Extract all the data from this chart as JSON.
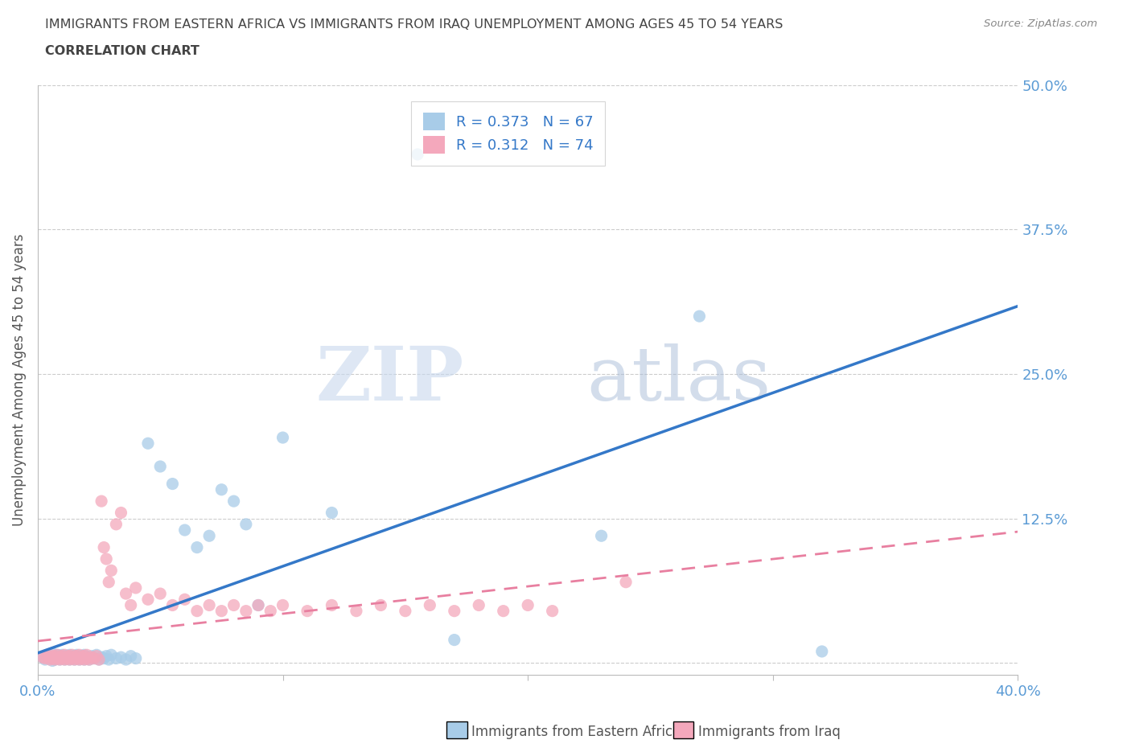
{
  "title_line1": "IMMIGRANTS FROM EASTERN AFRICA VS IMMIGRANTS FROM IRAQ UNEMPLOYMENT AMONG AGES 45 TO 54 YEARS",
  "title_line2": "CORRELATION CHART",
  "source": "Source: ZipAtlas.com",
  "ylabel": "Unemployment Among Ages 45 to 54 years",
  "xlim": [
    0.0,
    0.4
  ],
  "ylim": [
    -0.01,
    0.5
  ],
  "ytick_positions": [
    0.0,
    0.125,
    0.25,
    0.375,
    0.5
  ],
  "ytick_labels": [
    "",
    "12.5%",
    "25.0%",
    "37.5%",
    "50.0%"
  ],
  "xtick_positions": [
    0.0,
    0.1,
    0.2,
    0.3,
    0.4
  ],
  "xtick_labels": [
    "0.0%",
    "",
    "",
    "",
    "40.0%"
  ],
  "series1_label": "Immigrants from Eastern Africa",
  "series2_label": "Immigrants from Iraq",
  "R1": 0.373,
  "N1": 67,
  "R2": 0.312,
  "N2": 74,
  "color1": "#a8cce8",
  "color2": "#f4a8bc",
  "line1_color": "#3478c8",
  "line2_color": "#e87fa0",
  "watermark_zip": "ZIP",
  "watermark_atlas": "atlas",
  "background_color": "#ffffff",
  "grid_color": "#cccccc",
  "title_color": "#444444",
  "axis_label_color": "#555555",
  "tick_color": "#5b9bd5",
  "legend_text_color": "#3478c8",
  "blue_x": [
    0.002,
    0.003,
    0.004,
    0.005,
    0.005,
    0.006,
    0.006,
    0.007,
    0.007,
    0.008,
    0.008,
    0.009,
    0.009,
    0.01,
    0.01,
    0.011,
    0.011,
    0.012,
    0.012,
    0.013,
    0.013,
    0.014,
    0.014,
    0.015,
    0.015,
    0.016,
    0.016,
    0.017,
    0.017,
    0.018,
    0.018,
    0.019,
    0.019,
    0.02,
    0.02,
    0.021,
    0.022,
    0.023,
    0.024,
    0.025,
    0.026,
    0.027,
    0.028,
    0.029,
    0.03,
    0.032,
    0.034,
    0.036,
    0.038,
    0.04,
    0.045,
    0.05,
    0.055,
    0.06,
    0.065,
    0.07,
    0.075,
    0.08,
    0.085,
    0.09,
    0.1,
    0.12,
    0.155,
    0.17,
    0.23,
    0.27,
    0.32
  ],
  "blue_y": [
    0.005,
    0.003,
    0.007,
    0.004,
    0.006,
    0.002,
    0.008,
    0.003,
    0.005,
    0.004,
    0.007,
    0.003,
    0.006,
    0.004,
    0.007,
    0.003,
    0.005,
    0.004,
    0.006,
    0.003,
    0.007,
    0.004,
    0.005,
    0.003,
    0.006,
    0.004,
    0.007,
    0.003,
    0.005,
    0.004,
    0.006,
    0.003,
    0.007,
    0.004,
    0.005,
    0.003,
    0.006,
    0.004,
    0.007,
    0.003,
    0.005,
    0.004,
    0.006,
    0.003,
    0.007,
    0.004,
    0.005,
    0.003,
    0.006,
    0.004,
    0.19,
    0.17,
    0.155,
    0.115,
    0.1,
    0.11,
    0.15,
    0.14,
    0.12,
    0.05,
    0.195,
    0.13,
    0.44,
    0.02,
    0.11,
    0.3,
    0.01
  ],
  "pink_x": [
    0.002,
    0.003,
    0.004,
    0.005,
    0.005,
    0.006,
    0.006,
    0.007,
    0.007,
    0.008,
    0.008,
    0.009,
    0.009,
    0.01,
    0.01,
    0.011,
    0.011,
    0.012,
    0.012,
    0.013,
    0.013,
    0.014,
    0.014,
    0.015,
    0.015,
    0.016,
    0.016,
    0.017,
    0.017,
    0.018,
    0.018,
    0.019,
    0.019,
    0.02,
    0.02,
    0.021,
    0.022,
    0.023,
    0.024,
    0.025,
    0.026,
    0.027,
    0.028,
    0.029,
    0.03,
    0.032,
    0.034,
    0.036,
    0.038,
    0.04,
    0.045,
    0.05,
    0.055,
    0.06,
    0.065,
    0.07,
    0.075,
    0.08,
    0.085,
    0.09,
    0.095,
    0.1,
    0.11,
    0.12,
    0.13,
    0.14,
    0.15,
    0.16,
    0.17,
    0.18,
    0.19,
    0.2,
    0.21,
    0.24
  ],
  "pink_y": [
    0.005,
    0.004,
    0.006,
    0.003,
    0.007,
    0.004,
    0.005,
    0.003,
    0.006,
    0.004,
    0.007,
    0.003,
    0.005,
    0.004,
    0.006,
    0.003,
    0.007,
    0.004,
    0.005,
    0.003,
    0.006,
    0.004,
    0.007,
    0.003,
    0.005,
    0.004,
    0.006,
    0.003,
    0.007,
    0.004,
    0.005,
    0.003,
    0.006,
    0.004,
    0.007,
    0.003,
    0.005,
    0.004,
    0.006,
    0.003,
    0.14,
    0.1,
    0.09,
    0.07,
    0.08,
    0.12,
    0.13,
    0.06,
    0.05,
    0.065,
    0.055,
    0.06,
    0.05,
    0.055,
    0.045,
    0.05,
    0.045,
    0.05,
    0.045,
    0.05,
    0.045,
    0.05,
    0.045,
    0.05,
    0.045,
    0.05,
    0.045,
    0.05,
    0.045,
    0.05,
    0.045,
    0.05,
    0.045,
    0.07
  ]
}
